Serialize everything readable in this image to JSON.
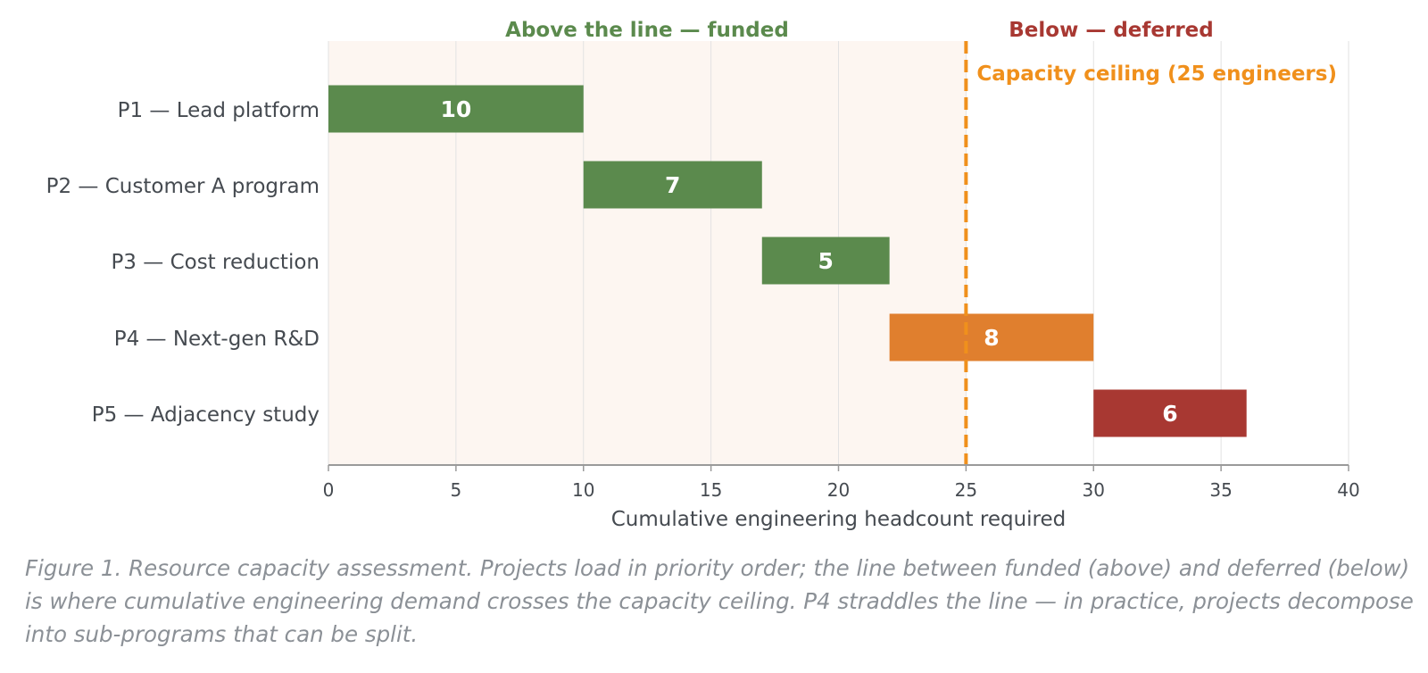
{
  "chart_data": {
    "type": "bar",
    "orientation": "horizontal",
    "stacked_waterfall": true,
    "title": "",
    "xlabel": "Cumulative engineering headcount required",
    "ylabel": "",
    "xlim": [
      0,
      40
    ],
    "x_ticks": [
      0,
      5,
      10,
      15,
      20,
      25,
      30,
      35,
      40
    ],
    "grid": "vertical",
    "categories": [
      "P1 — Lead platform",
      "P2 — Customer A program",
      "P3 — Cost reduction",
      "P4 — Next-gen R&D",
      "P5 — Adjacency study"
    ],
    "starts": [
      0,
      10,
      17,
      22,
      30
    ],
    "values": [
      10,
      7,
      5,
      8,
      6
    ],
    "bar_colors": [
      "#5b8a4d",
      "#5b8a4d",
      "#5b8a4d",
      "#e07f2e",
      "#a83832"
    ],
    "capacity": {
      "value": 25,
      "label": "Capacity ceiling (25 engineers)",
      "color": "#f0901c"
    },
    "regions": {
      "funded_label": "Above the line — funded",
      "funded_color": "#5b8a4d",
      "funded_fill": "#fdf6f1",
      "deferred_label": "Below — deferred",
      "deferred_color": "#a83832"
    }
  },
  "caption": "Figure 1. Resource capacity assessment. Projects load in priority order; the line between funded (above) and deferred (below) is where cumulative engineering demand crosses the capacity ceiling. P4 straddles the line — in practice, projects decompose into sub-programs that can be split."
}
